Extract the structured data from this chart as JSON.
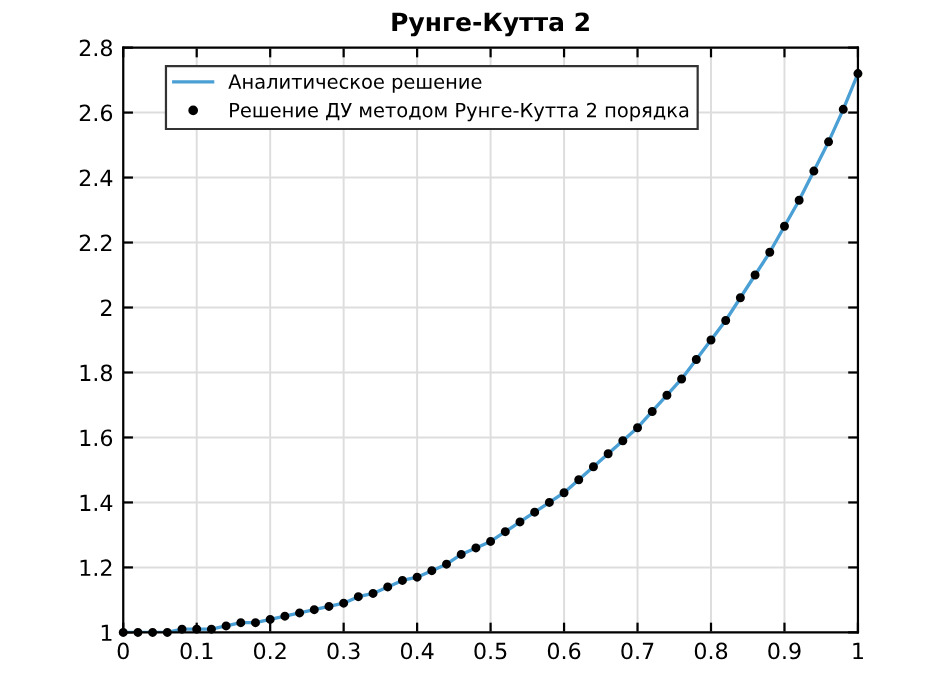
{
  "chart_data": {
    "type": "line",
    "title": "Рунге-Кутта 2",
    "x": [
      0,
      0.02,
      0.04,
      0.06,
      0.08,
      0.1,
      0.12,
      0.14,
      0.16,
      0.18,
      0.2,
      0.22,
      0.24,
      0.26,
      0.28,
      0.3,
      0.32,
      0.34,
      0.36,
      0.38,
      0.4,
      0.42,
      0.44,
      0.46,
      0.48,
      0.5,
      0.52,
      0.54,
      0.56,
      0.58,
      0.6,
      0.62,
      0.64,
      0.66,
      0.68,
      0.7,
      0.72,
      0.74,
      0.76,
      0.78,
      0.8,
      0.82,
      0.84,
      0.86,
      0.88,
      0.9,
      0.92,
      0.94,
      0.96,
      0.98,
      1
    ],
    "series": [
      {
        "name": "Аналитическое решение",
        "color": "#4a9fd4",
        "line_style": "solid",
        "marker": "none",
        "values": [
          1.0,
          1.0,
          1.0,
          1.0,
          1.01,
          1.01,
          1.01,
          1.02,
          1.03,
          1.03,
          1.04,
          1.05,
          1.06,
          1.07,
          1.08,
          1.09,
          1.11,
          1.12,
          1.14,
          1.16,
          1.17,
          1.19,
          1.21,
          1.24,
          1.26,
          1.28,
          1.31,
          1.34,
          1.37,
          1.4,
          1.43,
          1.47,
          1.51,
          1.55,
          1.59,
          1.63,
          1.68,
          1.73,
          1.78,
          1.84,
          1.9,
          1.96,
          2.03,
          2.1,
          2.17,
          2.25,
          2.33,
          2.42,
          2.51,
          2.61,
          2.72
        ]
      },
      {
        "name": "Решение ДУ методом Рунге-Кутта 2 порядка",
        "type": "scatter",
        "color": "#000000",
        "marker": "circle",
        "values": [
          1.0,
          1.0,
          1.0,
          1.0,
          1.01,
          1.01,
          1.01,
          1.02,
          1.03,
          1.03,
          1.04,
          1.05,
          1.06,
          1.07,
          1.08,
          1.09,
          1.11,
          1.12,
          1.14,
          1.16,
          1.17,
          1.19,
          1.21,
          1.24,
          1.26,
          1.28,
          1.31,
          1.34,
          1.37,
          1.4,
          1.43,
          1.47,
          1.51,
          1.55,
          1.59,
          1.63,
          1.68,
          1.73,
          1.78,
          1.84,
          1.9,
          1.96,
          2.03,
          2.1,
          2.17,
          2.25,
          2.33,
          2.42,
          2.51,
          2.61,
          2.72
        ]
      }
    ],
    "xlim": [
      0,
      1
    ],
    "ylim": [
      1,
      2.8
    ],
    "xticks": [
      0,
      0.1,
      0.2,
      0.3,
      0.4,
      0.5,
      0.6,
      0.7,
      0.8,
      0.9,
      1
    ],
    "yticks": [
      1,
      1.2,
      1.4,
      1.6,
      1.8,
      2,
      2.2,
      2.4,
      2.6,
      2.8
    ],
    "grid": true,
    "legend": "top"
  }
}
